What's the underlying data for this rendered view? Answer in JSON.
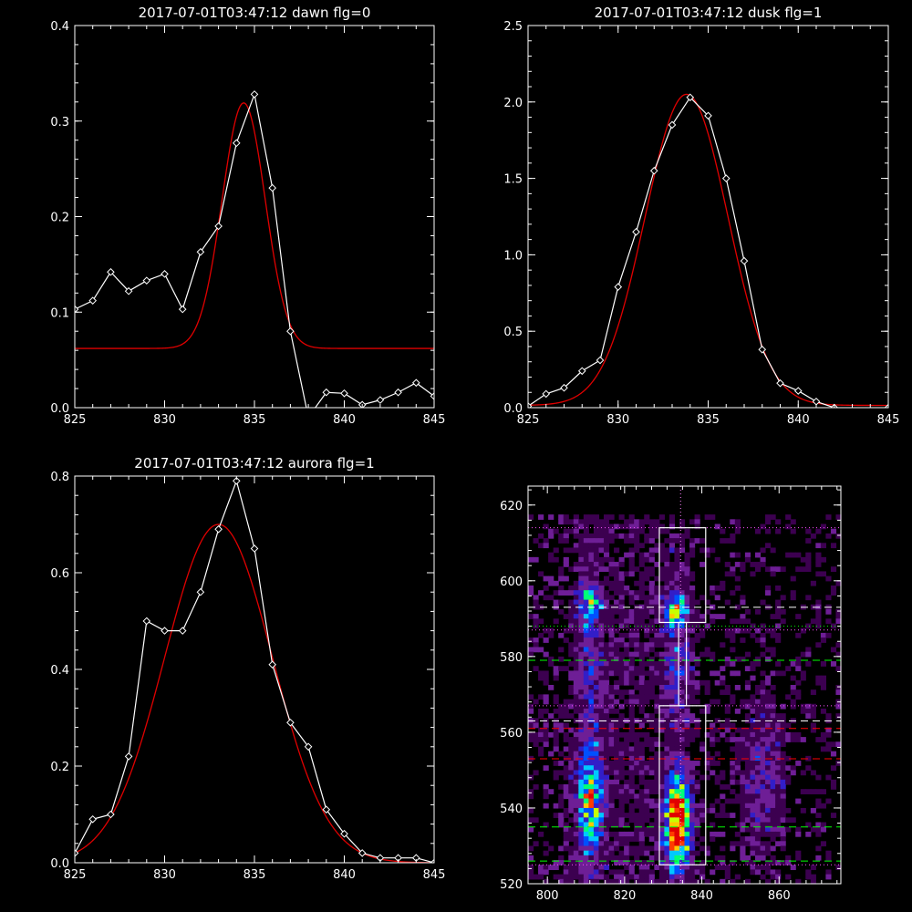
{
  "chart_data": [
    {
      "type": "line",
      "title": "2017-07-01T03:47:12 dawn flg=0",
      "xlim": [
        825,
        845
      ],
      "ylim": [
        0.0,
        0.4
      ],
      "xticks": [
        "825",
        "830",
        "835",
        "840",
        "845"
      ],
      "yticks": [
        "0.0",
        "0.1",
        "0.2",
        "0.3",
        "0.4"
      ],
      "series": [
        {
          "color": "#ffffff",
          "marker": "diamond",
          "x": [
            825,
            826,
            827,
            828,
            829,
            830,
            831,
            832,
            833,
            834,
            835,
            836,
            837,
            838,
            839,
            840,
            841,
            842,
            843,
            844,
            845
          ],
          "y": [
            0.103,
            0.112,
            0.142,
            0.122,
            0.133,
            0.14,
            0.103,
            0.163,
            0.19,
            0.277,
            0.328,
            0.23,
            0.08,
            -0.01,
            0.016,
            0.015,
            0.003,
            0.008,
            0.016,
            0.026,
            0.012
          ]
        },
        {
          "color": "#e00000",
          "fit": "gaussian",
          "baseline": 0.062,
          "amplitude": 0.257,
          "center": 834.4,
          "sigma": 1.2
        }
      ]
    },
    {
      "type": "line",
      "title": "2017-07-01T03:47:12 dusk flg=1",
      "xlim": [
        825,
        845
      ],
      "ylim": [
        0.0,
        2.5
      ],
      "xticks": [
        "825",
        "830",
        "835",
        "840",
        "845"
      ],
      "yticks": [
        "0.0",
        "0.5",
        "1.0",
        "1.5",
        "2.0",
        "2.5"
      ],
      "series": [
        {
          "color": "#ffffff",
          "marker": "diamond",
          "x": [
            825,
            826,
            827,
            828,
            829,
            830,
            831,
            832,
            833,
            834,
            835,
            836,
            837,
            838,
            839,
            840,
            841,
            842,
            843,
            844,
            845
          ],
          "y": [
            0.01,
            0.09,
            0.13,
            0.24,
            0.31,
            0.79,
            1.15,
            1.55,
            1.85,
            2.03,
            1.91,
            1.5,
            0.96,
            0.38,
            0.16,
            0.11,
            0.04,
            0.0,
            -0.02,
            -0.04,
            0.0
          ]
        },
        {
          "color": "#e00000",
          "fit": "gaussian",
          "baseline": 0.015,
          "amplitude": 2.035,
          "center": 833.8,
          "sigma": 2.3
        }
      ]
    },
    {
      "type": "line",
      "title": "2017-07-01T03:47:12 aurora flg=1",
      "xlim": [
        825,
        845
      ],
      "ylim": [
        0.0,
        0.8
      ],
      "xticks": [
        "825",
        "830",
        "835",
        "840",
        "845"
      ],
      "yticks": [
        "0.0",
        "0.2",
        "0.4",
        "0.6",
        "0.8"
      ],
      "series": [
        {
          "color": "#ffffff",
          "marker": "diamond",
          "x": [
            825,
            826,
            827,
            828,
            829,
            830,
            831,
            832,
            833,
            834,
            835,
            836,
            837,
            838,
            839,
            840,
            841,
            842,
            843,
            844,
            845
          ],
          "y": [
            0.02,
            0.09,
            0.1,
            0.22,
            0.5,
            0.48,
            0.48,
            0.56,
            0.69,
            0.79,
            0.65,
            0.41,
            0.29,
            0.24,
            0.11,
            0.06,
            0.02,
            0.01,
            0.01,
            0.01,
            0.0
          ]
        },
        {
          "color": "#e00000",
          "fit": "gaussian",
          "baseline": 0.0,
          "amplitude": 0.7,
          "center": 833.0,
          "sigma": 3.0
        }
      ]
    },
    {
      "type": "heatmap",
      "title": "",
      "xlim": [
        795,
        876
      ],
      "ylim": [
        520,
        625
      ],
      "xticks": [
        "800",
        "820",
        "840",
        "860"
      ],
      "yticks": [
        "520",
        "540",
        "560",
        "580",
        "600",
        "620"
      ],
      "colormap": [
        "#000000",
        "#3c0050",
        "#6e1e96",
        "#321ec8",
        "#0050ff",
        "#00c8ff",
        "#00ff78",
        "#c8ff00",
        "#ffc800",
        "#ff3c00",
        "#e10000"
      ],
      "emission_sources": [
        {
          "x": 833.5,
          "y": 536,
          "intensity": 1.0
        },
        {
          "x": 811.0,
          "y": 537,
          "intensity": 0.6
        },
        {
          "x": 833.5,
          "y": 592,
          "intensity": 0.45
        },
        {
          "x": 810.0,
          "y": 594,
          "intensity": 0.4
        },
        {
          "x": 856.0,
          "y": 548,
          "intensity": 0.2
        }
      ],
      "vertical_lines": [
        {
          "x": 834.5,
          "color": "#ff80ff",
          "style": "dotted"
        }
      ],
      "horizontal_lines": [
        {
          "y": 614,
          "color": "#ff50ff",
          "style": "dotted"
        },
        {
          "y": 593,
          "color": "#ffffff",
          "style": "dashed"
        },
        {
          "y": 588,
          "color": "#00ff00",
          "style": "dotted"
        },
        {
          "y": 587,
          "color": "#ff50ff",
          "style": "dotted"
        },
        {
          "y": 579,
          "color": "#00ff00",
          "style": "dashed"
        },
        {
          "y": 567,
          "color": "#ff50ff",
          "style": "dotted"
        },
        {
          "y": 563,
          "color": "#ffffff",
          "style": "dashed"
        },
        {
          "y": 561,
          "color": "#ff0000",
          "style": "dashed"
        },
        {
          "y": 553,
          "color": "#ff0000",
          "style": "dashed"
        },
        {
          "y": 535,
          "color": "#00ff00",
          "style": "dashed"
        },
        {
          "y": 526,
          "color": "#00ff00",
          "style": "dashed"
        },
        {
          "y": 525,
          "color": "#ff50ff",
          "style": "dotted"
        }
      ],
      "boxes": [
        {
          "x0": 829,
          "x1": 841,
          "y0": 589,
          "y1": 614,
          "color": "#ffffff"
        },
        {
          "x0": 829,
          "x1": 841,
          "y0": 525,
          "y1": 567,
          "color": "#ffffff"
        },
        {
          "x0": 834,
          "x1": 836,
          "y0": 567,
          "y1": 589,
          "color": "#ffffff"
        }
      ]
    }
  ]
}
